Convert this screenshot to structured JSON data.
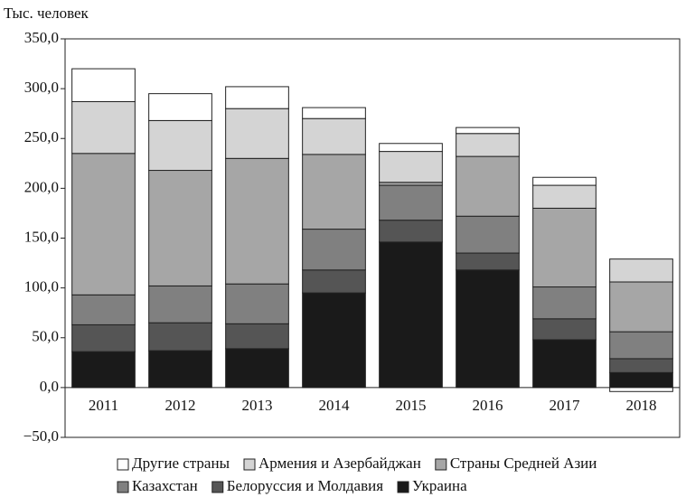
{
  "chart_data": {
    "type": "stacked_bar",
    "y_label": "Тыс. человек",
    "categories": [
      "2011",
      "2012",
      "2013",
      "2014",
      "2015",
      "2016",
      "2017",
      "2018"
    ],
    "series": [
      {
        "name": "Украина",
        "color": "#1a1a1a",
        "values": [
          36,
          37,
          39,
          95,
          146,
          118,
          48,
          15
        ]
      },
      {
        "name": "Белоруссия и Молдавия",
        "color": "#555555",
        "values": [
          27,
          28,
          25,
          23,
          22,
          17,
          21,
          14
        ]
      },
      {
        "name": "Казахстан",
        "color": "#808080",
        "values": [
          30,
          37,
          40,
          41,
          35,
          37,
          32,
          27
        ]
      },
      {
        "name": "Страны Средней Азии",
        "color": "#a6a6a6",
        "values": [
          142,
          116,
          126,
          75,
          3,
          60,
          79,
          50
        ]
      },
      {
        "name": "Армения и Азербайджан",
        "color": "#d4d4d4",
        "values": [
          52,
          50,
          50,
          36,
          31,
          23,
          23,
          23
        ]
      },
      {
        "name": "Другие страны",
        "color": "#ffffff",
        "values": [
          33,
          27,
          22,
          11,
          8,
          6,
          8,
          -4
        ]
      }
    ],
    "ylim": [
      -50,
      350
    ],
    "yticks": [
      {
        "value": -50,
        "label": "−50,0"
      },
      {
        "value": 0,
        "label": "0,0"
      },
      {
        "value": 50,
        "label": "50,0"
      },
      {
        "value": 100,
        "label": "100,0"
      },
      {
        "value": 150,
        "label": "150,0"
      },
      {
        "value": 200,
        "label": "200,0"
      },
      {
        "value": 250,
        "label": "250,0"
      },
      {
        "value": 300,
        "label": "300,0"
      },
      {
        "value": 350,
        "label": "350,0"
      }
    ]
  }
}
